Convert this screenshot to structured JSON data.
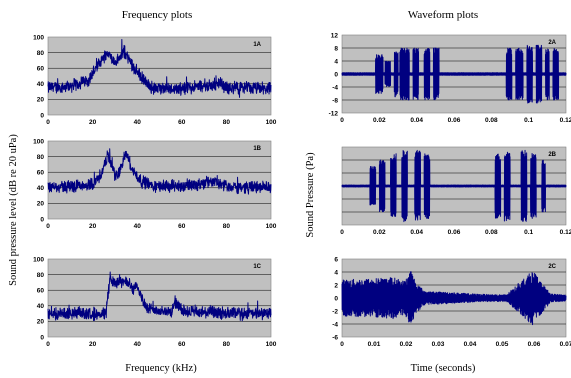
{
  "figure": {
    "left_column_title": "Frequency plots",
    "right_column_title": "Waveform plots",
    "left_ylabel": "Sound  pressure  level  (dB re 20 uPa)",
    "right_ylabel": "Sound Pressure (Pa)",
    "left_xlabel": "Frequency (kHz)",
    "right_xlabel": "Time (seconds)"
  },
  "chart_data": [
    {
      "id": "1A",
      "label": "1A",
      "type": "line",
      "xlim": [
        0,
        100
      ],
      "ylim": [
        0,
        100
      ],
      "xticks": [
        "0",
        "20",
        "40",
        "60",
        "80",
        "100"
      ],
      "yticks": [
        "0",
        "20",
        "40",
        "60",
        "80",
        "100"
      ],
      "grid": true,
      "series": [
        {
          "x": [
            0,
            10,
            18,
            22,
            25,
            27,
            30,
            33,
            34,
            37,
            40,
            43,
            46,
            50,
            60,
            77,
            80,
            100
          ],
          "y": [
            35,
            37,
            45,
            62,
            75,
            80,
            66,
            76,
            82,
            68,
            55,
            44,
            36,
            34,
            34,
            40,
            35,
            34
          ]
        }
      ]
    },
    {
      "id": "1B",
      "label": "1B",
      "type": "line",
      "xlim": [
        0,
        100
      ],
      "ylim": [
        0,
        100
      ],
      "xticks": [
        "0",
        "20",
        "40",
        "60",
        "80",
        "100"
      ],
      "yticks": [
        "0",
        "20",
        "40",
        "60",
        "80",
        "100"
      ],
      "grid": true,
      "series": [
        {
          "x": [
            0,
            10,
            20,
            24,
            27,
            30,
            32,
            35,
            38,
            42,
            48,
            60,
            75,
            80,
            100
          ],
          "y": [
            40,
            42,
            45,
            58,
            82,
            56,
            60,
            85,
            62,
            48,
            42,
            42,
            48,
            42,
            40
          ]
        }
      ]
    },
    {
      "id": "1C",
      "label": "1C",
      "type": "line",
      "xlim": [
        0,
        100
      ],
      "ylim": [
        0,
        100
      ],
      "xticks": [
        "0",
        "20",
        "40",
        "60",
        "80",
        "100"
      ],
      "yticks": [
        "0",
        "20",
        "40",
        "60",
        "80",
        "100"
      ],
      "grid": true,
      "series": [
        {
          "x": [
            0,
            26,
            27,
            28,
            30,
            32,
            35,
            38,
            40,
            42,
            45,
            55,
            57,
            60,
            80,
            100
          ],
          "y": [
            30,
            30,
            55,
            78,
            68,
            72,
            70,
            62,
            66,
            50,
            35,
            32,
            45,
            33,
            30,
            30
          ]
        }
      ]
    },
    {
      "id": "2A",
      "label": "2A",
      "type": "line",
      "xlim": [
        0,
        0.12
      ],
      "ylim": [
        -12,
        12
      ],
      "xticks": [
        "0",
        "0.02",
        "0.04",
        "0.06",
        "0.08",
        "0.1",
        "0.12"
      ],
      "yticks": [
        "-12",
        "-8",
        "-4",
        "0",
        "4",
        "8",
        "12"
      ],
      "grid": true,
      "bursts": [
        [
          0.018,
          0.022,
          6
        ],
        [
          0.023,
          0.026,
          4
        ],
        [
          0.028,
          0.03,
          7
        ],
        [
          0.031,
          0.036,
          8
        ],
        [
          0.038,
          0.041,
          8
        ],
        [
          0.044,
          0.047,
          8
        ],
        [
          0.049,
          0.052,
          8
        ],
        [
          0.088,
          0.091,
          8
        ],
        [
          0.093,
          0.097,
          8
        ],
        [
          0.099,
          0.102,
          9
        ],
        [
          0.104,
          0.107,
          9
        ],
        [
          0.109,
          0.111,
          8
        ],
        [
          0.113,
          0.116,
          8
        ]
      ],
      "baseline_amplitude": 0.4
    },
    {
      "id": "2B",
      "label": "2B",
      "type": "line",
      "xlim": [
        0,
        0.12
      ],
      "ylim": [
        -12,
        12
      ],
      "xticks": [
        "0",
        "0.02",
        "0.04",
        "0.06",
        "0.08",
        "0.1",
        "0.12"
      ],
      "yticks": [],
      "grid": true,
      "bursts": [
        [
          0.015,
          0.018,
          6
        ],
        [
          0.02,
          0.023,
          8
        ],
        [
          0.026,
          0.029,
          10
        ],
        [
          0.032,
          0.035,
          11
        ],
        [
          0.039,
          0.042,
          11
        ],
        [
          0.044,
          0.047,
          10
        ],
        [
          0.082,
          0.085,
          10
        ],
        [
          0.087,
          0.09,
          11
        ],
        [
          0.096,
          0.099,
          11
        ],
        [
          0.101,
          0.104,
          10
        ],
        [
          0.107,
          0.109,
          8
        ]
      ],
      "baseline_amplitude": 0.3
    },
    {
      "id": "2C",
      "label": "2C",
      "type": "line",
      "xlim": [
        0,
        0.075
      ],
      "ylim": [
        -6,
        6
      ],
      "xticks": [
        "0",
        "0.01",
        "0.02",
        "0.03",
        "0.04",
        "0.05",
        "0.06",
        "0.07"
      ],
      "yticks": [
        "-6",
        "-4",
        "-2",
        "0",
        "2",
        "4",
        "6"
      ],
      "grid": true,
      "envelope": {
        "t": [
          0,
          0.01,
          0.017,
          0.021,
          0.023,
          0.025,
          0.028,
          0.035,
          0.045,
          0.055,
          0.062,
          0.064,
          0.066,
          0.07,
          0.075
        ],
        "amp": [
          2.8,
          3.0,
          3.2,
          2.6,
          4.5,
          2.2,
          1.0,
          0.9,
          0.6,
          0.5,
          3.5,
          4.2,
          2.8,
          0.6,
          0.5
        ]
      }
    }
  ]
}
